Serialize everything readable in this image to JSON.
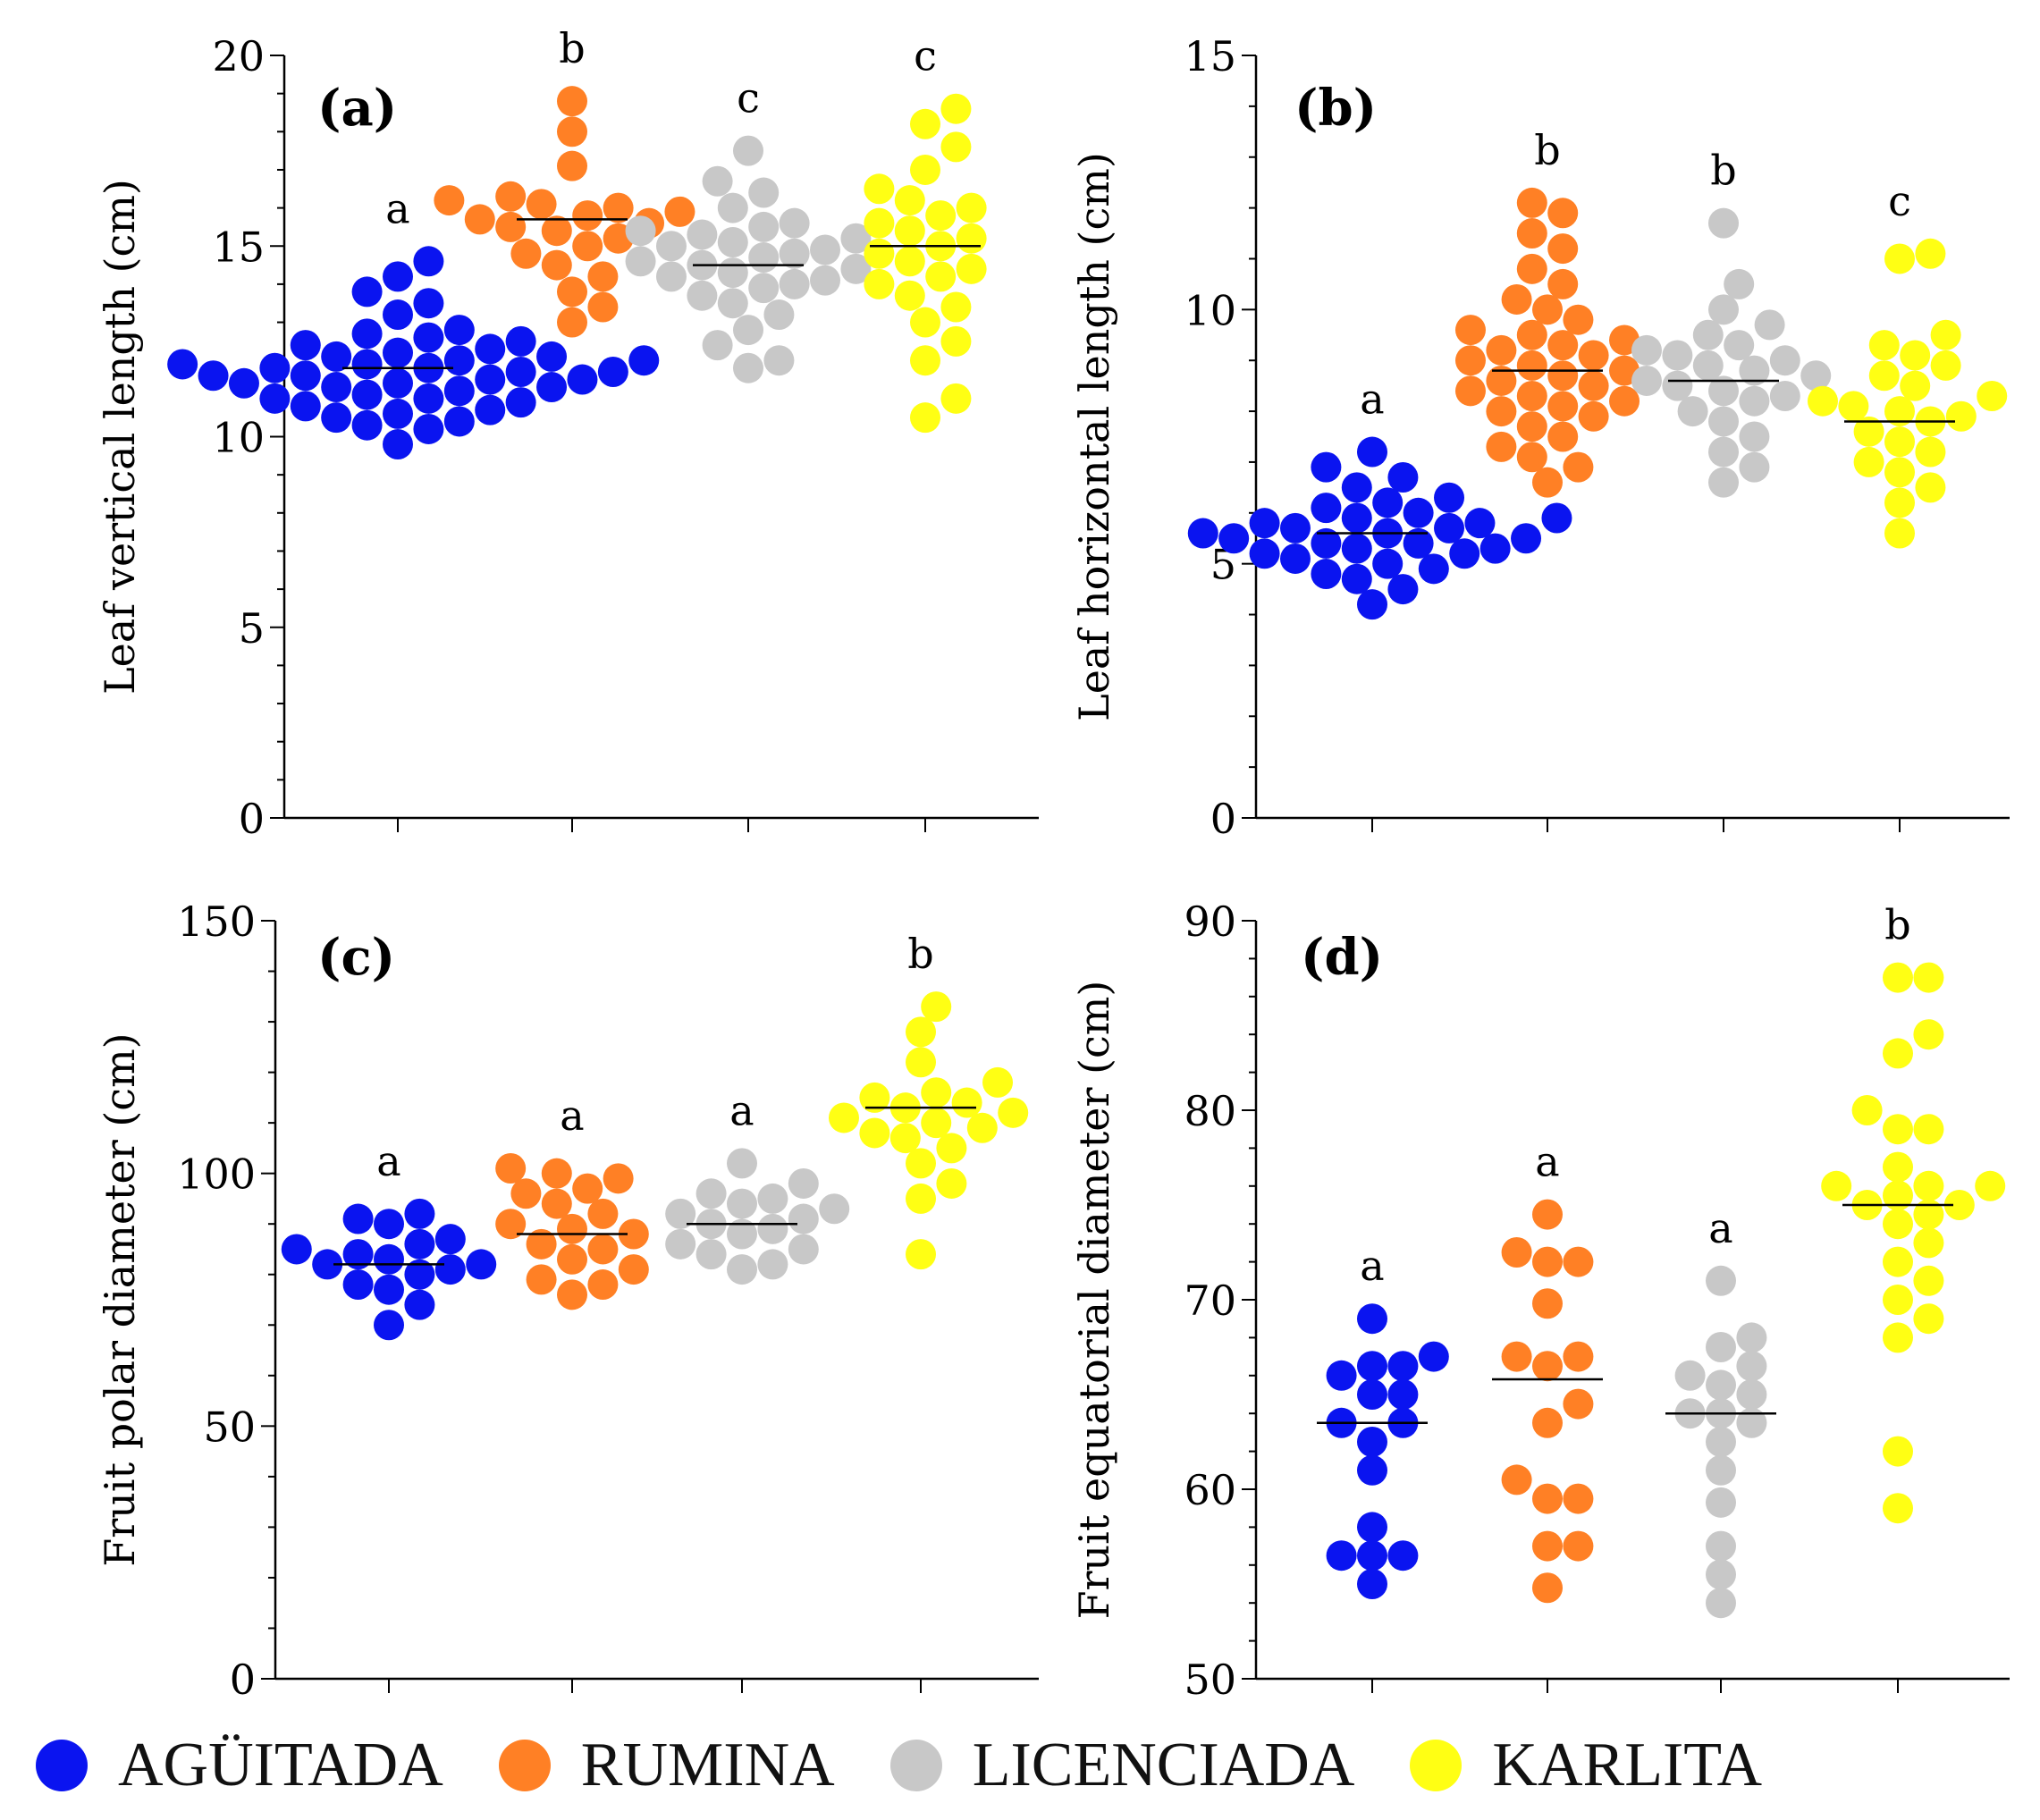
{
  "chart_data": [
    {
      "type": "scatter",
      "panel_label": "(a)",
      "ylabel": "Leaf vertical length (cm)",
      "ylim": [
        0,
        20
      ],
      "yticks": [
        "0",
        "5",
        "10",
        "15",
        "20"
      ],
      "categories": [
        "AGÜITADA",
        "RUMINA",
        "LICENCIADA",
        "KARLITA"
      ],
      "letters": [
        "a",
        "b",
        "c",
        "c"
      ],
      "means": [
        11.8,
        15.7,
        14.5,
        15.0
      ],
      "series": [
        {
          "name": "AGÜITADA",
          "values": [
            9.8,
            10.2,
            10.3,
            10.4,
            10.5,
            10.6,
            10.7,
            10.8,
            10.9,
            11.0,
            11.0,
            11.1,
            11.2,
            11.3,
            11.3,
            11.4,
            11.4,
            11.5,
            11.5,
            11.6,
            11.6,
            11.7,
            11.7,
            11.8,
            11.8,
            11.9,
            11.9,
            12.0,
            12.0,
            12.1,
            12.1,
            12.2,
            12.3,
            12.4,
            12.5,
            12.6,
            12.7,
            12.8,
            13.2,
            13.5,
            13.8,
            14.2,
            14.6
          ]
        },
        {
          "name": "RUMINA",
          "values": [
            13.0,
            13.4,
            13.8,
            14.2,
            14.5,
            14.8,
            15.0,
            15.2,
            15.4,
            15.5,
            15.6,
            15.7,
            15.8,
            15.9,
            16.0,
            16.1,
            16.2,
            16.3,
            17.1,
            18.0,
            18.8
          ]
        },
        {
          "name": "LICENCIADA",
          "values": [
            11.8,
            12.0,
            12.4,
            12.8,
            13.2,
            13.5,
            13.7,
            13.9,
            14.0,
            14.1,
            14.2,
            14.3,
            14.4,
            14.5,
            14.6,
            14.7,
            14.8,
            14.9,
            15.0,
            15.1,
            15.2,
            15.3,
            15.4,
            15.5,
            15.6,
            16.0,
            16.4,
            16.7,
            17.5
          ]
        },
        {
          "name": "KARLITA",
          "values": [
            10.5,
            11.0,
            12.0,
            12.5,
            13.0,
            13.4,
            13.7,
            14.0,
            14.2,
            14.4,
            14.6,
            14.8,
            15.0,
            15.2,
            15.4,
            15.6,
            15.8,
            16.0,
            16.2,
            16.5,
            17.0,
            17.6,
            18.2,
            18.6
          ]
        }
      ]
    },
    {
      "type": "scatter",
      "panel_label": "(b)",
      "ylabel": "Leaf horizontal length (cm)",
      "ylim": [
        0,
        15
      ],
      "yticks": [
        "0",
        "5",
        "10",
        "15"
      ],
      "categories": [
        "AGÜITADA",
        "RUMINA",
        "LICENCIADA",
        "KARLITA"
      ],
      "letters": [
        "a",
        "b",
        "b",
        "c"
      ],
      "means": [
        5.6,
        8.8,
        8.6,
        7.8
      ],
      "series": [
        {
          "name": "AGÜITADA",
          "values": [
            4.2,
            4.5,
            4.7,
            4.8,
            4.9,
            5.0,
            5.1,
            5.2,
            5.2,
            5.3,
            5.3,
            5.4,
            5.4,
            5.5,
            5.5,
            5.6,
            5.6,
            5.7,
            5.7,
            5.8,
            5.8,
            5.9,
            5.9,
            6.0,
            6.1,
            6.2,
            6.3,
            6.5,
            6.7,
            6.9,
            7.2
          ]
        },
        {
          "name": "RUMINA",
          "values": [
            6.6,
            6.9,
            7.1,
            7.3,
            7.5,
            7.7,
            7.9,
            8.0,
            8.1,
            8.2,
            8.3,
            8.4,
            8.5,
            8.6,
            8.7,
            8.8,
            8.9,
            9.0,
            9.1,
            9.2,
            9.3,
            9.4,
            9.5,
            9.6,
            9.8,
            10.0,
            10.2,
            10.5,
            10.8,
            11.2,
            11.5,
            11.9,
            12.1
          ]
        },
        {
          "name": "LICENCIADA",
          "values": [
            6.6,
            6.9,
            7.2,
            7.5,
            7.8,
            8.0,
            8.2,
            8.3,
            8.4,
            8.5,
            8.6,
            8.7,
            8.8,
            8.9,
            9.0,
            9.1,
            9.2,
            9.3,
            9.5,
            9.7,
            10.0,
            10.5,
            11.7
          ]
        },
        {
          "name": "KARLITA",
          "values": [
            5.6,
            6.2,
            6.5,
            6.8,
            7.0,
            7.2,
            7.4,
            7.6,
            7.8,
            7.9,
            8.0,
            8.1,
            8.2,
            8.3,
            8.5,
            8.7,
            8.9,
            9.1,
            9.3,
            9.5,
            11.0,
            11.1
          ]
        }
      ]
    },
    {
      "type": "scatter",
      "panel_label": "(c)",
      "ylabel": "Fruit polar diameter (cm)",
      "ylim": [
        0,
        150
      ],
      "yticks": [
        "0",
        "50",
        "100",
        "150"
      ],
      "categories": [
        "AGÜITADA",
        "RUMINA",
        "LICENCIADA",
        "KARLITA"
      ],
      "letters": [
        "a",
        "a",
        "a",
        "b"
      ],
      "means": [
        82,
        88,
        90,
        113
      ],
      "series": [
        {
          "name": "AGÜITADA",
          "values": [
            70,
            74,
            77,
            78,
            80,
            81,
            82,
            82,
            83,
            84,
            85,
            86,
            87,
            90,
            91,
            92
          ]
        },
        {
          "name": "RUMINA",
          "values": [
            76,
            78,
            79,
            81,
            83,
            85,
            86,
            88,
            89,
            90,
            92,
            94,
            96,
            97,
            99,
            100,
            101
          ]
        },
        {
          "name": "LICENCIADA",
          "values": [
            81,
            82,
            84,
            85,
            86,
            88,
            89,
            90,
            91,
            92,
            93,
            94,
            95,
            96,
            98,
            102
          ]
        },
        {
          "name": "KARLITA",
          "values": [
            84,
            95,
            98,
            102,
            105,
            107,
            108,
            109,
            110,
            111,
            112,
            113,
            114,
            115,
            116,
            118,
            122,
            128,
            133
          ]
        }
      ]
    },
    {
      "type": "scatter",
      "panel_label": "(d)",
      "ylabel": "Fruit equatorial diameter (cm)",
      "ylim": [
        50,
        90
      ],
      "yticks": [
        "50",
        "60",
        "70",
        "80",
        "90"
      ],
      "categories": [
        "AGÜITADA",
        "RUMINA",
        "LICENCIADA",
        "KARLITA"
      ],
      "letters": [
        "a",
        "a",
        "a",
        "b"
      ],
      "means": [
        63.5,
        65.8,
        64.0,
        75.0
      ],
      "series": [
        {
          "name": "AGÜITADA",
          "values": [
            55,
            56.5,
            56.5,
            56.5,
            58,
            61,
            62.5,
            63.5,
            63.5,
            65,
            65,
            66,
            66.5,
            66.5,
            67,
            69
          ]
        },
        {
          "name": "RUMINA",
          "values": [
            54.8,
            57,
            57,
            59.5,
            59.5,
            60.5,
            63.5,
            64.5,
            66.5,
            67,
            67,
            69.8,
            72,
            72,
            72.5,
            74.5
          ]
        },
        {
          "name": "LICENCIADA",
          "values": [
            54,
            55.5,
            57,
            59.3,
            61,
            62.5,
            63.5,
            64,
            64,
            65,
            65.5,
            66,
            66.5,
            67.5,
            68,
            71
          ]
        },
        {
          "name": "KARLITA",
          "values": [
            59,
            62,
            68,
            69,
            70,
            71,
            72,
            73,
            74,
            74.5,
            75,
            75,
            75.5,
            76,
            76,
            76,
            77,
            79,
            79,
            80,
            83,
            84,
            87,
            87
          ]
        }
      ]
    }
  ],
  "legend": {
    "items": [
      {
        "label": "AGÜITADA",
        "color": "#0a14f0"
      },
      {
        "label": "RUMINA",
        "color": "#ff8025"
      },
      {
        "label": "LICENCIADA",
        "color": "#c8c8c8"
      },
      {
        "label": "KARLITA",
        "color": "#ffff14"
      }
    ]
  }
}
